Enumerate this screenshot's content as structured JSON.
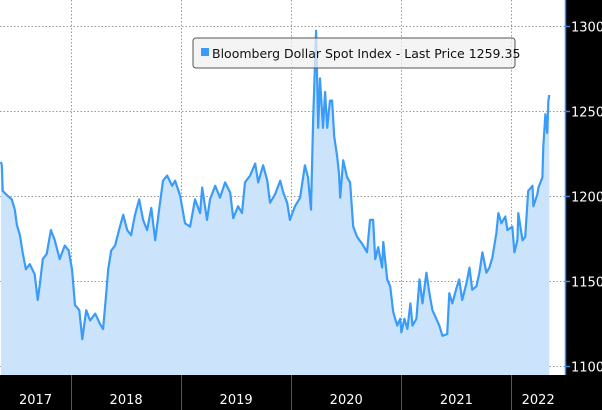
{
  "chart_data": {
    "type": "area",
    "title": "",
    "xlabel": "",
    "ylabel": "",
    "legend": {
      "position": "top-center",
      "entries": [
        "Bloomberg Dollar Spot Index - Last Price 1259.35"
      ]
    },
    "xlim": [
      "2017-05-10",
      "2022-06-28"
    ],
    "ylim": [
      1095,
      1315
    ],
    "y_axis_side": "right",
    "grid": true,
    "x_tick_labels": [
      "2017",
      "2018",
      "2019",
      "2020",
      "2021",
      "2022"
    ],
    "y_ticks": [
      1100,
      1150,
      1200,
      1250,
      1300
    ],
    "y_tick_labels": [
      "1100",
      "1150",
      "1200",
      "1250",
      "1300"
    ],
    "colors": {
      "line": "#3a9cf8",
      "fill": "#cce4fb",
      "background": "#000000",
      "plot": "#ffffff"
    },
    "series": [
      {
        "name": "Bloomberg Dollar Spot Index - Last Price 1259.35",
        "x": [
          "2017-05-13",
          "2017-05-16",
          "2017-05-19",
          "2017-06-05",
          "2017-06-18",
          "2017-06-28",
          "2017-07-05",
          "2017-07-15",
          "2017-07-25",
          "2017-08-04",
          "2017-08-17",
          "2017-09-02",
          "2017-09-12",
          "2017-09-19",
          "2017-09-29",
          "2017-10-12",
          "2017-10-26",
          "2017-11-08",
          "2017-11-24",
          "2017-12-11",
          "2017-12-24",
          "2018-01-04",
          "2018-01-14",
          "2018-01-28",
          "2018-02-07",
          "2018-02-20",
          "2018-03-05",
          "2018-03-22",
          "2018-04-07",
          "2018-04-17",
          "2018-04-27",
          "2018-05-04",
          "2018-05-14",
          "2018-05-27",
          "2018-06-09",
          "2018-06-23",
          "2018-07-06",
          "2018-07-19",
          "2018-08-01",
          "2018-08-15",
          "2018-08-28",
          "2018-09-10",
          "2018-09-24",
          "2018-10-07",
          "2018-10-20",
          "2018-11-02",
          "2018-11-16",
          "2018-12-02",
          "2018-12-12",
          "2018-12-29",
          "2019-01-14",
          "2019-01-31",
          "2019-02-16",
          "2019-03-05",
          "2019-03-12",
          "2019-03-28",
          "2019-04-07",
          "2019-04-24",
          "2019-05-10",
          "2019-05-27",
          "2019-06-13",
          "2019-06-23",
          "2019-07-09",
          "2019-07-22",
          "2019-08-01",
          "2019-08-18",
          "2019-09-04",
          "2019-09-14",
          "2019-09-30",
          "2019-10-14",
          "2019-10-23",
          "2019-11-09",
          "2019-11-26",
          "2019-12-06",
          "2019-12-19",
          "2019-12-28",
          "2020-01-14",
          "2020-01-31",
          "2020-02-16",
          "2020-02-26",
          "2020-03-07",
          "2020-03-14",
          "2020-03-24",
          "2020-03-31",
          "2020-04-06",
          "2020-04-16",
          "2020-04-23",
          "2020-04-30",
          "2020-05-09",
          "2020-05-16",
          "2020-05-23",
          "2020-06-02",
          "2020-06-08",
          "2020-06-12",
          "2020-06-22",
          "2020-07-05",
          "2020-07-15",
          "2020-07-25",
          "2020-08-07",
          "2020-08-24",
          "2020-09-09",
          "2020-09-19",
          "2020-09-29",
          "2020-10-06",
          "2020-10-16",
          "2020-10-29",
          "2020-11-02",
          "2020-11-15",
          "2020-11-25",
          "2020-12-05",
          "2020-12-18",
          "2020-12-28",
          "2021-01-01",
          "2021-01-11",
          "2021-01-21",
          "2021-01-31",
          "2021-02-07",
          "2021-02-20",
          "2021-03-02",
          "2021-03-12",
          "2021-03-25",
          "2021-04-04",
          "2021-04-14",
          "2021-04-27",
          "2021-05-07",
          "2021-05-17",
          "2021-06-02",
          "2021-06-09",
          "2021-06-19",
          "2021-07-03",
          "2021-07-12",
          "2021-07-22",
          "2021-08-05",
          "2021-08-15",
          "2021-08-24",
          "2021-09-07",
          "2021-09-17",
          "2021-09-27",
          "2021-10-10",
          "2021-10-20",
          "2021-10-30",
          "2021-11-12",
          "2021-11-19",
          "2021-11-29",
          "2021-12-12",
          "2021-12-19",
          "2022-01-04",
          "2022-01-11",
          "2022-01-21",
          "2022-01-24",
          "2022-02-07",
          "2022-02-16",
          "2022-02-26",
          "2022-03-12",
          "2022-03-15",
          "2022-03-28",
          "2022-04-01",
          "2022-04-14",
          "2022-04-17",
          "2022-04-24",
          "2022-04-30",
          "2022-05-04",
          "2022-05-07"
        ],
        "values": [
          1220,
          1218,
          1203,
          1200,
          1198,
          1192,
          1183,
          1177,
          1166,
          1157,
          1160,
          1154,
          1139,
          1148,
          1163,
          1166,
          1180,
          1174,
          1163,
          1171,
          1168,
          1157,
          1136,
          1133,
          1116,
          1133,
          1127,
          1131,
          1125,
          1122,
          1142,
          1157,
          1168,
          1171,
          1180,
          1189,
          1180,
          1177,
          1189,
          1198,
          1186,
          1180,
          1193,
          1174,
          1192,
          1209,
          1212,
          1206,
          1209,
          1200,
          1184,
          1182,
          1198,
          1190,
          1205,
          1186,
          1198,
          1206,
          1199,
          1208,
          1202,
          1187,
          1194,
          1190,
          1208,
          1212,
          1219,
          1208,
          1218,
          1209,
          1196,
          1201,
          1209,
          1202,
          1196,
          1186,
          1194,
          1199,
          1218,
          1211,
          1192,
          1244,
          1297,
          1240,
          1269,
          1240,
          1261,
          1240,
          1256,
          1256,
          1235,
          1223,
          1213,
          1199,
          1221,
          1211,
          1208,
          1182,
          1176,
          1172,
          1167,
          1186,
          1186,
          1163,
          1170,
          1158,
          1173,
          1151,
          1147,
          1132,
          1124,
          1128,
          1120,
          1128,
          1122,
          1137,
          1124,
          1128,
          1151,
          1137,
          1155,
          1143,
          1133,
          1128,
          1124,
          1118,
          1119,
          1143,
          1137,
          1146,
          1151,
          1139,
          1149,
          1158,
          1145,
          1147,
          1155,
          1167,
          1155,
          1158,
          1164,
          1178,
          1190,
          1184,
          1188,
          1180,
          1182,
          1167,
          1174,
          1190,
          1174,
          1176,
          1203,
          1206,
          1194,
          1201,
          1205,
          1211,
          1229,
          1248,
          1237,
          1256,
          1259.35
        ]
      }
    ]
  }
}
